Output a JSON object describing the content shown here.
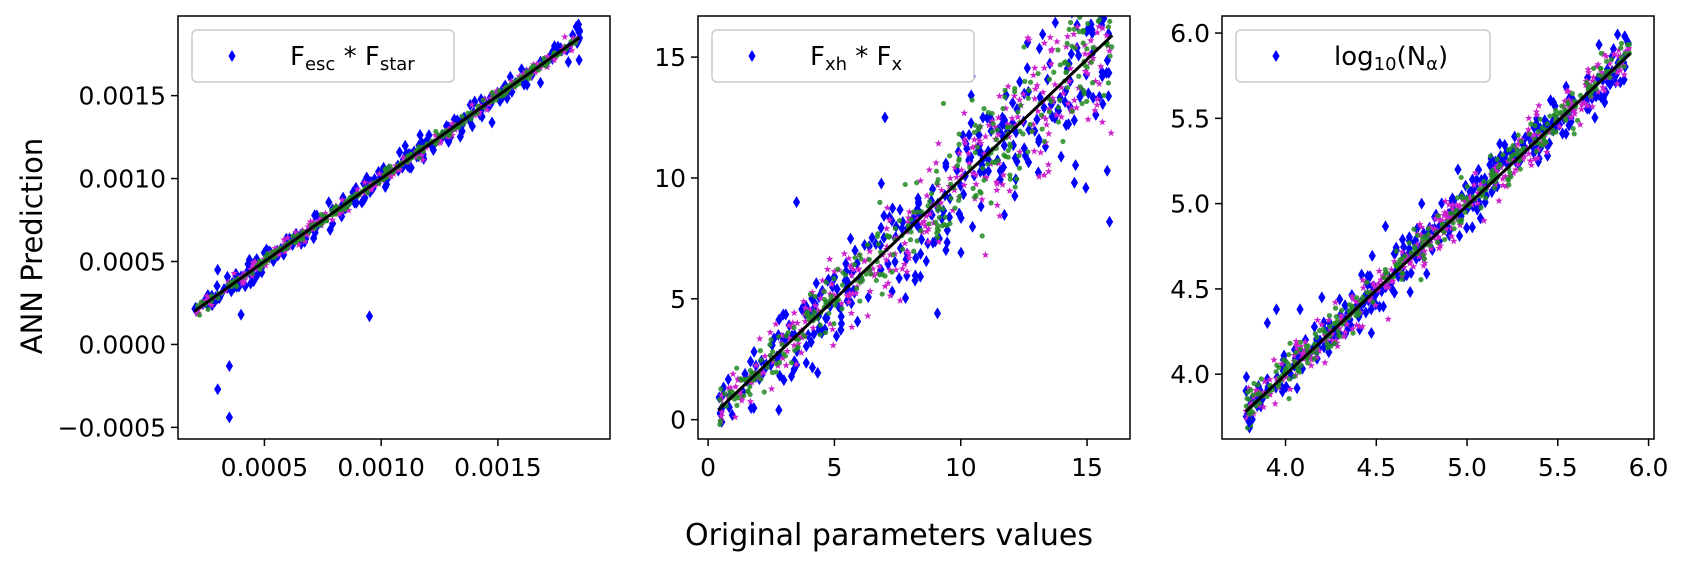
{
  "figure": {
    "ylabel": "ANN Prediction",
    "xlabel": "Original parameters values"
  },
  "colors": {
    "blue": "#0000ff",
    "magenta": "#cc22cc",
    "green": "#228b22",
    "identity_line": "#000000"
  },
  "chart_data": [
    {
      "type": "scatter",
      "legend": {
        "position": "top-left",
        "label_main": "F",
        "label_sub": "esc",
        "label_main2": " * F",
        "label_sub2": "star"
      },
      "xlim": [
        0.00013,
        0.00198
      ],
      "ylim": [
        -0.00057,
        0.00198
      ],
      "xticks": [
        0.0005,
        0.001,
        0.0015
      ],
      "xtick_labels": [
        "0.0005",
        "0.0010",
        "0.0015"
      ],
      "yticks": [
        -0.0005,
        0.0,
        0.0005,
        0.001,
        0.0015
      ],
      "ytick_labels": [
        "−0.0005",
        "0.0000",
        "0.0005",
        "0.0010",
        "0.0015"
      ],
      "x_range": [
        0.0002,
        0.00185
      ],
      "line": [
        [
          0.0002,
          0.0002
        ],
        [
          0.00185,
          0.00185
        ]
      ],
      "spread": {
        "blue": 4e-05,
        "magenta": 2.5e-05,
        "green": 1.8e-05
      },
      "outliers": [
        [
          0.0003,
          -0.00027
        ],
        [
          0.00035,
          -0.00013
        ],
        [
          0.00035,
          -0.00044
        ],
        [
          0.0004,
          0.00018
        ],
        [
          0.00095,
          0.00017
        ],
        [
          0.0003,
          0.00045
        ]
      ],
      "series": [
        {
          "marker": "diamond",
          "color": "blue"
        },
        {
          "marker": "star",
          "color": "magenta"
        },
        {
          "marker": "dot",
          "color": "green"
        }
      ]
    },
    {
      "type": "scatter",
      "legend": {
        "position": "top-left",
        "label_main": "F",
        "label_sub": "xh",
        "label_main2": " * F",
        "label_sub2": "x"
      },
      "xlim": [
        -0.4,
        16.7
      ],
      "ylim": [
        -0.8,
        16.7
      ],
      "xticks": [
        0,
        5,
        10,
        15
      ],
      "xtick_labels": [
        "0",
        "5",
        "10",
        "15"
      ],
      "yticks": [
        0,
        5,
        10,
        15
      ],
      "ytick_labels": [
        "0",
        "5",
        "10",
        "15"
      ],
      "x_range": [
        0.4,
        16.0
      ],
      "line": [
        [
          0.4,
          0.4
        ],
        [
          16.0,
          15.9
        ]
      ],
      "spread": {
        "blue": 1.9,
        "magenta": 1.6,
        "green": 1.3
      },
      "outliers": [
        [
          3.5,
          9.0
        ],
        [
          7.0,
          12.5
        ],
        [
          2.8,
          0.4
        ],
        [
          14.5,
          9.8
        ],
        [
          15.8,
          10.3
        ]
      ],
      "series": [
        {
          "marker": "diamond",
          "color": "blue"
        },
        {
          "marker": "star",
          "color": "magenta"
        },
        {
          "marker": "dot",
          "color": "green"
        }
      ]
    },
    {
      "type": "scatter",
      "legend": {
        "position": "top-left",
        "label_main": "log",
        "label_sub": "10",
        "label_main2": "(N",
        "label_sub2": "α",
        "label_end": ")"
      },
      "xlim": [
        3.65,
        6.03
      ],
      "ylim": [
        3.62,
        6.1
      ],
      "xticks": [
        4.0,
        4.5,
        5.0,
        5.5,
        6.0
      ],
      "xtick_labels": [
        "4.0",
        "4.5",
        "5.0",
        "5.5",
        "6.0"
      ],
      "yticks": [
        4.0,
        4.5,
        5.0,
        5.5,
        6.0
      ],
      "ytick_labels": [
        "4.0",
        "4.5",
        "5.0",
        "5.5",
        "6.0"
      ],
      "x_range": [
        3.78,
        5.9
      ],
      "line": [
        [
          3.78,
          3.78
        ],
        [
          5.9,
          5.88
        ]
      ],
      "spread": {
        "blue": 0.09,
        "magenta": 0.07,
        "green": 0.06
      },
      "outliers": [
        [
          3.8,
          3.72
        ],
        [
          3.9,
          4.3
        ],
        [
          3.95,
          4.38
        ],
        [
          4.08,
          4.38
        ],
        [
          4.2,
          4.45
        ],
        [
          4.75,
          5.0
        ],
        [
          4.95,
          5.2
        ]
      ],
      "series": [
        {
          "marker": "diamond",
          "color": "blue"
        },
        {
          "marker": "star",
          "color": "magenta"
        },
        {
          "marker": "dot",
          "color": "green"
        }
      ]
    }
  ]
}
